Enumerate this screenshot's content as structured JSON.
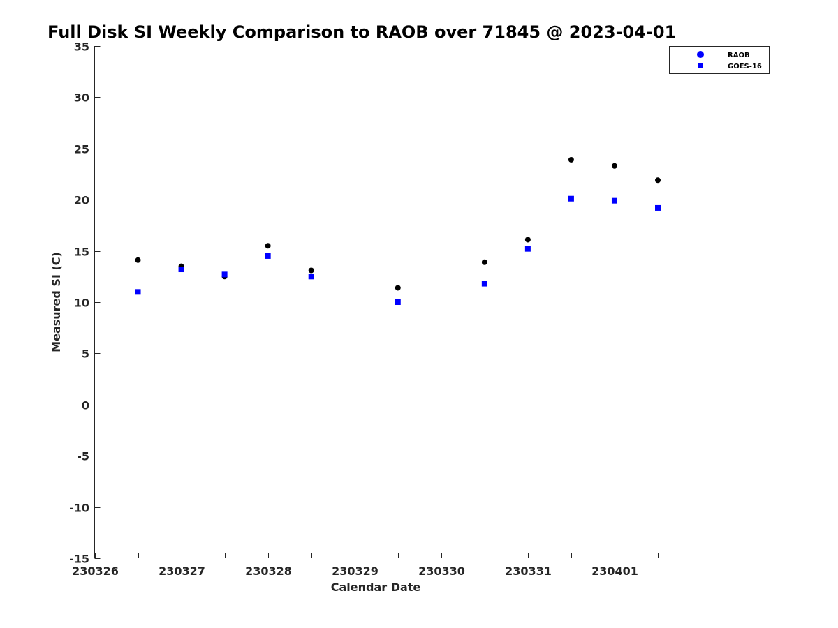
{
  "chart_data": {
    "type": "scatter",
    "title": "Full Disk SI Weekly Comparison to RAOB over 71845 @ 2023-04-01",
    "xlabel": "Calendar Date",
    "ylabel": "Measured SI (C)",
    "xlim": [
      "230326",
      "230401.5"
    ],
    "ylim": [
      -15,
      35
    ],
    "x_ticks": [
      {
        "value": 0,
        "label": "230326"
      },
      {
        "value": 1,
        "label": "230327"
      },
      {
        "value": 2,
        "label": "230328"
      },
      {
        "value": 3,
        "label": "230329"
      },
      {
        "value": 4,
        "label": "230330"
      },
      {
        "value": 5,
        "label": "230331"
      },
      {
        "value": 6,
        "label": "230401"
      }
    ],
    "y_ticks": [
      35,
      30,
      25,
      20,
      15,
      10,
      5,
      0,
      -5,
      -10,
      -15
    ],
    "grid": false,
    "legend_position": "top-right",
    "series": [
      {
        "name": "RAOB",
        "marker": "circle",
        "color": "#000000",
        "points": [
          {
            "x": 0.5,
            "y": 14.1
          },
          {
            "x": 1.0,
            "y": 13.5
          },
          {
            "x": 1.5,
            "y": 12.5
          },
          {
            "x": 2.0,
            "y": 15.5
          },
          {
            "x": 2.5,
            "y": 13.1
          },
          {
            "x": 3.5,
            "y": 11.4
          },
          {
            "x": 4.5,
            "y": 13.9
          },
          {
            "x": 5.0,
            "y": 16.1
          },
          {
            "x": 5.5,
            "y": 23.9
          },
          {
            "x": 6.0,
            "y": 23.3
          },
          {
            "x": 6.5,
            "y": 21.9
          }
        ]
      },
      {
        "name": "GOES-16",
        "marker": "square",
        "color": "#0000ff",
        "points": [
          {
            "x": 0.5,
            "y": 11.0
          },
          {
            "x": 1.0,
            "y": 13.2
          },
          {
            "x": 1.5,
            "y": 12.7
          },
          {
            "x": 2.0,
            "y": 14.5
          },
          {
            "x": 2.5,
            "y": 12.5
          },
          {
            "x": 3.5,
            "y": 10.0
          },
          {
            "x": 4.5,
            "y": 11.8
          },
          {
            "x": 5.0,
            "y": 15.2
          },
          {
            "x": 5.5,
            "y": 20.1
          },
          {
            "x": 6.0,
            "y": 19.9
          },
          {
            "x": 6.5,
            "y": 19.2
          }
        ]
      }
    ],
    "legend_entries": [
      "RAOB",
      "GOES-16"
    ]
  }
}
